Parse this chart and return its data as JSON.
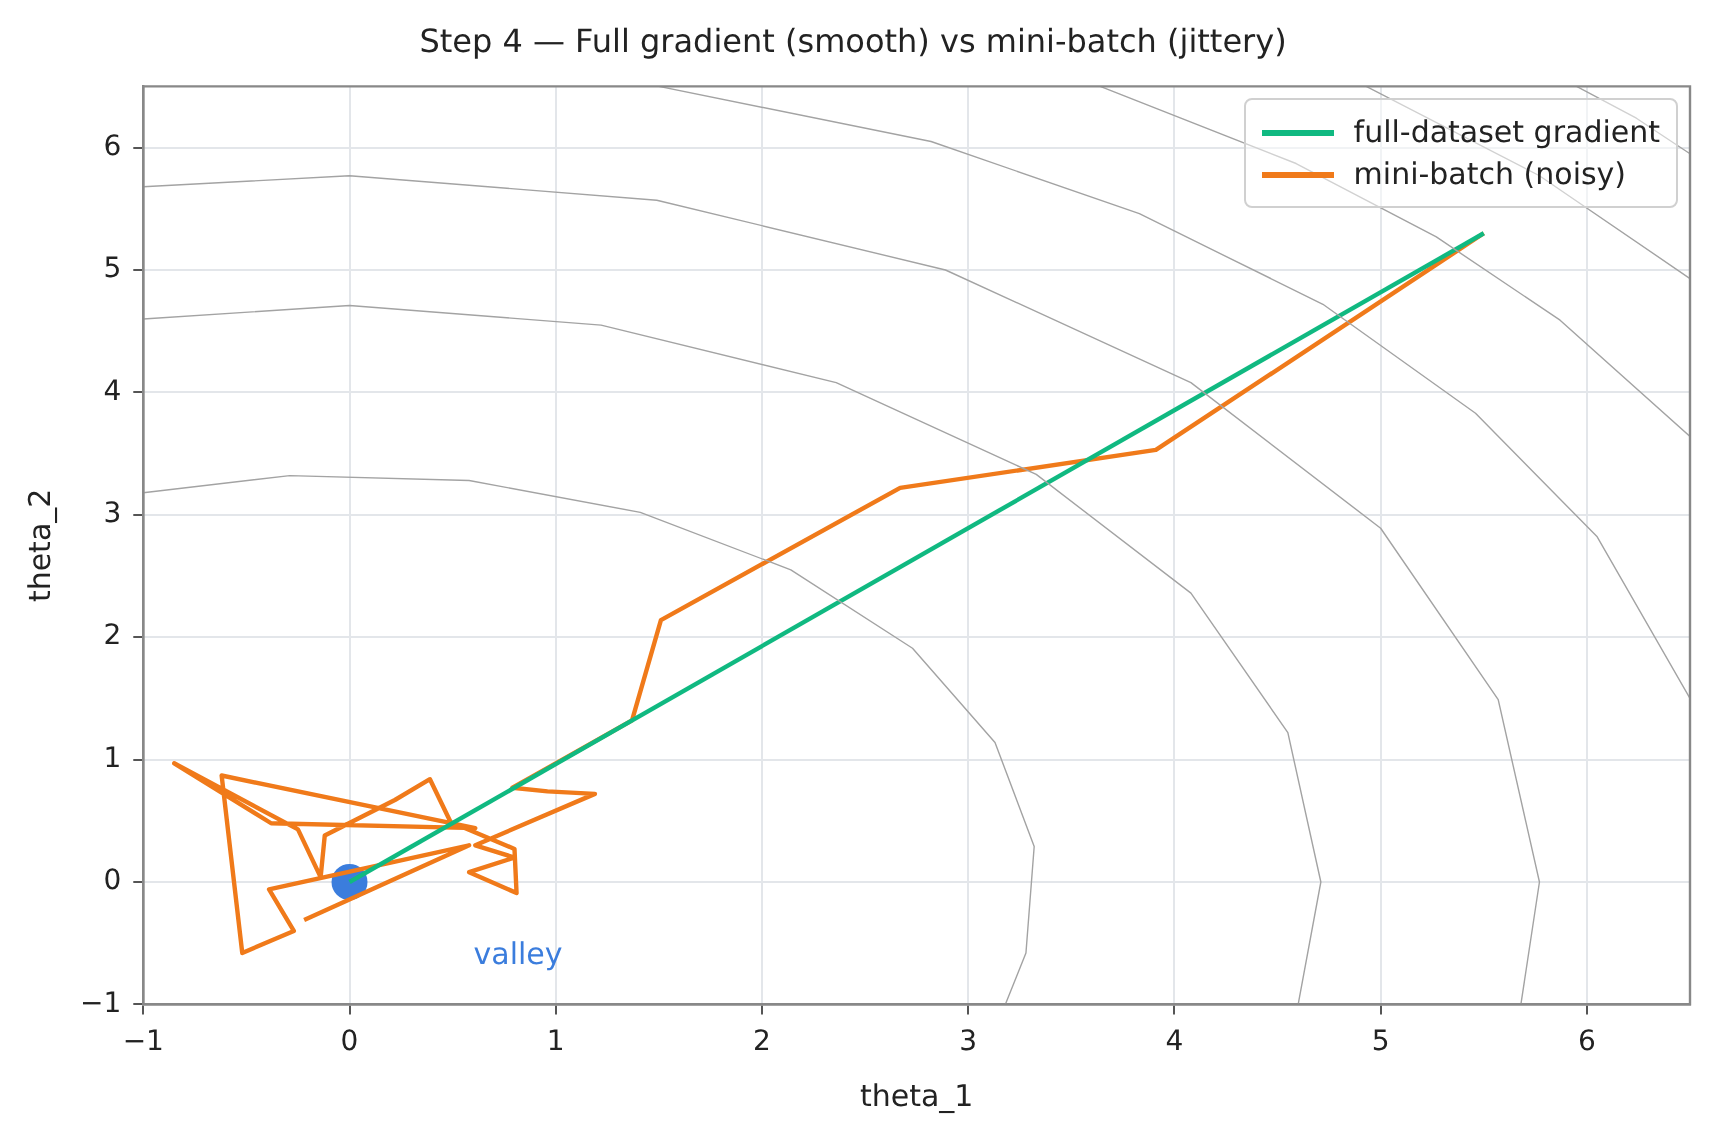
{
  "chart_data": {
    "type": "line",
    "title": "Step 4 — Full gradient (smooth) vs mini-batch (jittery)",
    "xlabel": "theta_1",
    "ylabel": "theta_2",
    "xlim": [
      -1,
      6.5
    ],
    "ylim": [
      -1,
      6.5
    ],
    "xticks": [
      -1,
      0,
      1,
      2,
      3,
      4,
      5,
      6
    ],
    "yticks": [
      -1,
      0,
      1,
      2,
      3,
      4,
      5,
      6
    ],
    "grid": true,
    "legend": "top right",
    "marker": "none",
    "line_style": "solid",
    "annotations": [
      "valley"
    ],
    "series": [
      {
        "color": "#a3a3a3",
        "x": [
          -1.0,
          -0.29,
          0.58,
          1.41,
          2.14,
          2.73,
          3.13,
          3.32,
          3.28,
          3.18
        ],
        "values": [
          3.18,
          3.32,
          3.28,
          3.02,
          2.55,
          1.91,
          1.14,
          0.29,
          -0.58,
          -1.0
        ]
      },
      {
        "color": "#a3a3a3",
        "x": [
          -1.0,
          0,
          1.22,
          2.36,
          3.33,
          4.08,
          4.55,
          4.71,
          4.6
        ],
        "values": [
          4.6,
          4.71,
          4.55,
          4.08,
          3.33,
          2.36,
          1.22,
          0,
          -1.0
        ]
      },
      {
        "color": "#a3a3a3",
        "x": [
          -1.0,
          0,
          1.49,
          2.89,
          4.08,
          5.0,
          5.57,
          5.77,
          5.68
        ],
        "values": [
          5.68,
          5.77,
          5.57,
          5.0,
          4.08,
          2.89,
          1.49,
          0,
          -1.0
        ]
      },
      {
        "color": "#a3a3a3",
        "x": [
          1.5,
          2.82,
          3.83,
          4.72,
          5.46,
          6.05,
          6.5
        ],
        "values": [
          6.5,
          6.05,
          5.46,
          4.72,
          3.83,
          2.82,
          1.5
        ]
      },
      {
        "color": "#a3a3a3",
        "x": [
          3.64,
          4.59,
          5.27,
          5.87,
          6.5
        ],
        "values": [
          6.5,
          5.87,
          5.27,
          4.59,
          3.64
        ]
      },
      {
        "color": "#a3a3a3",
        "x": [
          4.93,
          5.77,
          6.5
        ],
        "values": [
          6.5,
          5.77,
          4.93
        ]
      },
      {
        "color": "#a3a3a3",
        "x": [
          5.95,
          6.24,
          6.5
        ],
        "values": [
          6.5,
          6.24,
          5.95
        ]
      },
      {
        "name": "full-dataset gradient",
        "color": "#10b981",
        "x": [
          5.5,
          0
        ],
        "values": [
          5.3,
          0
        ]
      },
      {
        "name": "mini-batch (noisy)",
        "color": "#f07a1a",
        "x": [
          5.5,
          3.91,
          2.67,
          1.51,
          1.37,
          0.79,
          0.96,
          1.19,
          0.61,
          0.8,
          0.58,
          0.81,
          0.8,
          0.49,
          0.39,
          0.22,
          -0.12,
          -0.14,
          -0.25,
          -0.85,
          -0.38,
          0.61,
          -0.62,
          -0.52,
          -0.27,
          -0.39,
          0.58,
          -0.22
        ],
        "values": [
          5.3,
          3.53,
          3.22,
          2.14,
          1.32,
          0.77,
          0.74,
          0.72,
          0.3,
          0.2,
          0.08,
          -0.09,
          0.27,
          0.49,
          0.84,
          0.67,
          0.38,
          0.04,
          0.43,
          0.97,
          0.48,
          0.44,
          0.87,
          -0.58,
          -0.4,
          -0.06,
          0.3,
          -0.31
        ]
      },
      {
        "type": "scatter",
        "marker": "circle",
        "color": "#3b7ddd",
        "x": [
          0
        ],
        "values": [
          0
        ]
      }
    ]
  }
}
